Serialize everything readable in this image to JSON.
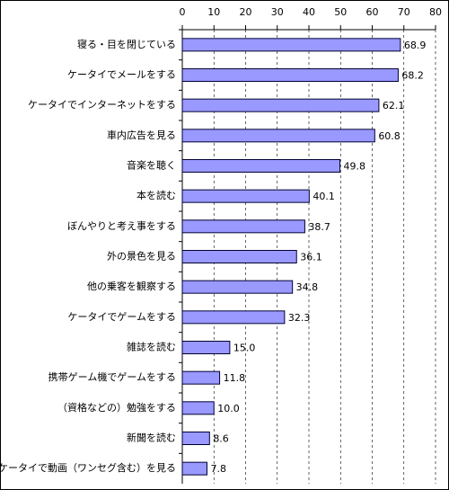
{
  "chart_data": {
    "type": "bar",
    "orientation": "horizontal",
    "categories": [
      "寝る・目を閉じている",
      "ケータイでメールをする",
      "ケータイでインターネットをする",
      "車内広告を見る",
      "音楽を聴く",
      "本を読む",
      "ぼんやりと考え事をする",
      "外の景色を見る",
      "他の乗客を観察する",
      "ケータイでゲームをする",
      "雑誌を読む",
      "携帯ゲーム機でゲームをする",
      "（資格などの）勉強をする",
      "新聞を読む",
      "ケータイで動画（ワンセグ含む）を見る"
    ],
    "values": [
      68.9,
      68.2,
      62.1,
      60.8,
      49.8,
      40.1,
      38.7,
      36.1,
      34.8,
      32.3,
      15.0,
      11.8,
      10.0,
      8.6,
      7.8
    ],
    "value_labels": [
      "68.9",
      "68.2",
      "62.1",
      "60.8",
      "49.8",
      "40.1",
      "38.7",
      "36.1",
      "34.8",
      "32.3",
      "15.0",
      "11.8",
      "10.0",
      "8.6",
      "7.8"
    ],
    "color": "#9999ff",
    "xlim": [
      0,
      80
    ],
    "xticks": [
      0,
      10,
      20,
      30,
      40,
      50,
      60,
      70,
      80
    ],
    "grid": true
  }
}
